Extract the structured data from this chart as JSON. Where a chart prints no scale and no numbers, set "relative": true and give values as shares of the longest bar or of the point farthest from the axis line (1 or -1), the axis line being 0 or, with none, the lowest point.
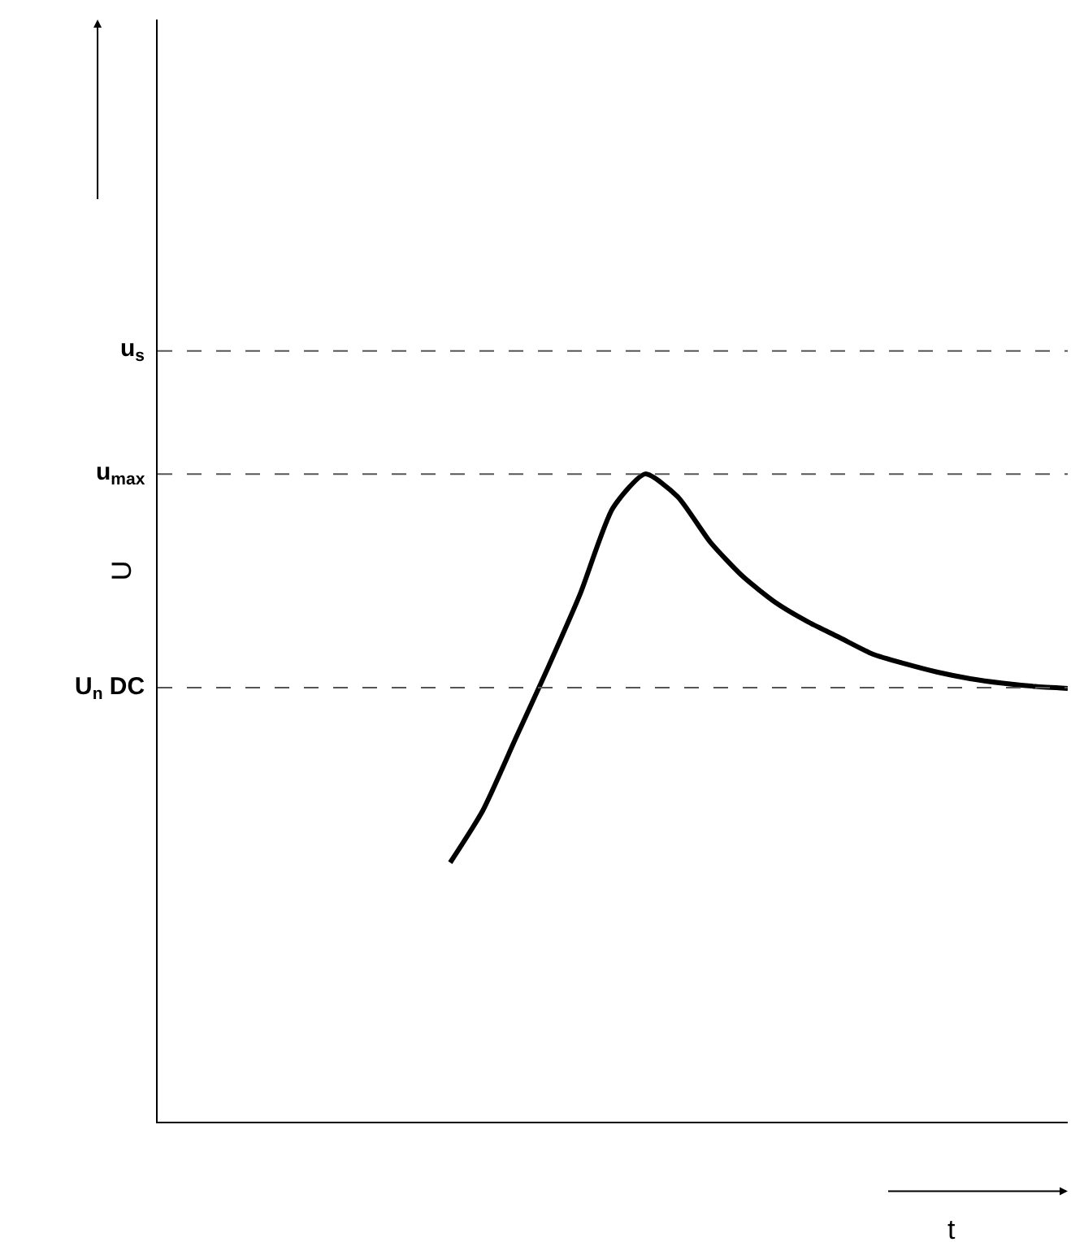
{
  "chart_data": {
    "type": "line",
    "relative": true,
    "xlabel": "t",
    "ylabel": "U",
    "categories": [
      null,
      null,
      null,
      null,
      null,
      null,
      null,
      null,
      null,
      null,
      null,
      null,
      null,
      null,
      null,
      null,
      null,
      null,
      null,
      null,
      null,
      null,
      null,
      null,
      null,
      null,
      null,
      null,
      null
    ],
    "series": [
      {
        "color": "#000000",
        "values": [
          null,
          null,
          null,
          null,
          null,
          null,
          null,
          null,
          null,
          0.4,
          0.48,
          0.59,
          0.7,
          0.815,
          0.947,
          1.0,
          0.965,
          0.895,
          0.842,
          0.802,
          0.772,
          0.747,
          0.722,
          0.707,
          0.694,
          0.684,
          0.677,
          0.672,
          0.669
        ]
      }
    ],
    "ref_lines": [
      {
        "axis": "y",
        "value": 1.19,
        "label": "u$_{s}$",
        "color": "#555555",
        "line_style": "dashed"
      },
      {
        "axis": "y",
        "value": 1.0,
        "label": "u$_{max}$",
        "color": "#555555",
        "line_style": "dashed"
      },
      {
        "axis": "y",
        "value": 0.67,
        "label": "U$_{n}$ DC",
        "color": "#555555",
        "line_style": "dashed"
      }
    ],
    "grid": false,
    "legend": false,
    "marker": "none",
    "line_style": "solid"
  }
}
